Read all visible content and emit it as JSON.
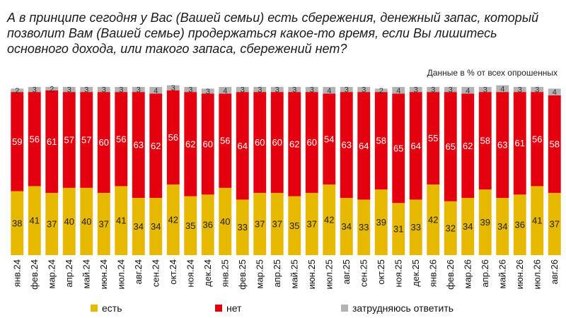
{
  "title": "А в принципе сегодня у Вас (Вашей семьи) есть сбережения, денежный запас, который позволит Вам (Вашей семье) продержаться какое-то время, если Вы лишитесь основного дохода, или такого запаса, сбережений нет?",
  "subtitle": "Данные в % от всех опрошенных",
  "colors": {
    "yes": "#e6b800",
    "no": "#e3000f",
    "unsure": "#b3b3b3"
  },
  "legend": [
    {
      "key": "yes",
      "label": "есть"
    },
    {
      "key": "no",
      "label": "нет"
    },
    {
      "key": "unsure",
      "label": "затрудняюсь ответить"
    }
  ],
  "chart_data": {
    "type": "bar",
    "stacked": true,
    "categories": [
      "янв.24",
      "фев.24",
      "мар.24",
      "апр.24",
      "май.24",
      "июн.24",
      "июл.24",
      "авг.24",
      "сен.24",
      "окт.24",
      "ноя.24",
      "дек.24",
      "янв.25",
      "фев.25",
      "мар.25",
      "апр.25",
      "май.25",
      "июн.25",
      "июл.25",
      "авг.25",
      "сен.25",
      "окт.25",
      "ноя.25",
      "дек.25",
      "янв.26",
      "фев.26",
      "мар.26",
      "апр.26",
      "май.26",
      "июн.26",
      "июл.26",
      "авг.26"
    ],
    "series": [
      {
        "name": "есть",
        "key": "yes",
        "values": [
          38,
          41,
          37,
          40,
          40,
          37,
          41,
          34,
          34,
          42,
          35,
          36,
          40,
          33,
          37,
          37,
          35,
          37,
          42,
          34,
          33,
          39,
          31,
          33,
          42,
          32,
          34,
          39,
          34,
          36,
          41,
          37
        ]
      },
      {
        "name": "нет",
        "key": "no",
        "values": [
          59,
          56,
          61,
          57,
          57,
          60,
          56,
          63,
          62,
          56,
          62,
          60,
          56,
          64,
          60,
          60,
          62,
          60,
          54,
          63,
          64,
          58,
          65,
          64,
          55,
          65,
          62,
          58,
          63,
          61,
          56,
          58
        ]
      },
      {
        "name": "затрудняюсь ответить",
        "key": "unsure",
        "values": [
          2,
          3,
          2,
          3,
          3,
          3,
          3,
          3,
          4,
          3,
          3,
          3,
          4,
          3,
          3,
          3,
          3,
          3,
          4,
          3,
          3,
          2,
          4,
          3,
          3,
          3,
          4,
          3,
          4,
          3,
          3,
          4
        ]
      }
    ],
    "ylim": [
      0,
      100
    ],
    "grid": false,
    "legend_position": "bottom"
  }
}
